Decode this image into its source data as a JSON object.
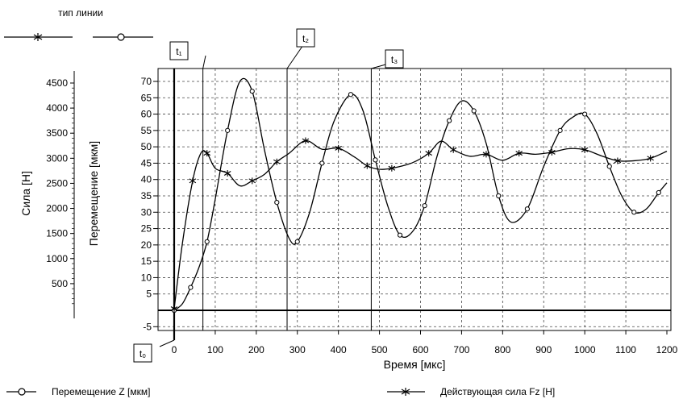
{
  "chart_data": {
    "type": "line",
    "legend_title": "тип линии",
    "xlabel": "Время [мкс]",
    "ylabel_left": "Сила [Н]",
    "ylabel_right": "Перемещение [мкм]",
    "xlim": [
      -50,
      1200
    ],
    "ylim_displacement": [
      -10,
      73
    ],
    "ylim_force": [
      -800,
      4700
    ],
    "grid": true,
    "x_ticks": [
      "0",
      "100",
      "200",
      "300",
      "400",
      "500",
      "600",
      "700",
      "800",
      "900",
      "1000",
      "1100",
      "1200"
    ],
    "y_ticks_displacement": [
      "-5",
      "5",
      "10",
      "15",
      "20",
      "25",
      "30",
      "35",
      "40",
      "45",
      "50",
      "55",
      "60",
      "65",
      "70"
    ],
    "y_ticks_force": [
      "500",
      "1000",
      "1500",
      "2000",
      "2500",
      "3000",
      "3500",
      "4000",
      "4500"
    ],
    "markers": [
      "t₀",
      "t₁",
      "t₂",
      "t₃"
    ],
    "marker_x": [
      0,
      70,
      275,
      480
    ],
    "series": [
      {
        "name": "Перемещение Z [мкм]",
        "marker": "circle",
        "x": [
          0,
          20,
          40,
          60,
          80,
          100,
          130,
          160,
          190,
          220,
          250,
          280,
          300,
          330,
          360,
          390,
          430,
          460,
          490,
          520,
          550,
          580,
          610,
          640,
          670,
          700,
          730,
          760,
          790,
          820,
          860,
          900,
          940,
          970,
          1000,
          1030,
          1060,
          1090,
          1120,
          1150,
          1180,
          1200
        ],
        "y": [
          0,
          2,
          7,
          13,
          21,
          34,
          55,
          70,
          67,
          49,
          33,
          22,
          21,
          30,
          45,
          58,
          66,
          61,
          46,
          32,
          23,
          24,
          32,
          47,
          58,
          64,
          61,
          51,
          35,
          27,
          31,
          44,
          55,
          59,
          60,
          54,
          44,
          35,
          30,
          31,
          36,
          39
        ]
      },
      {
        "name": "Действующая сила Fz [Н]",
        "marker": "star",
        "x": [
          0,
          20,
          45,
          65,
          80,
          100,
          130,
          160,
          190,
          220,
          250,
          280,
          320,
          360,
          400,
          440,
          470,
          500,
          530,
          580,
          620,
          650,
          680,
          720,
          760,
          800,
          840,
          880,
          920,
          960,
          1000,
          1040,
          1080,
          1120,
          1160,
          1200
        ],
        "y": [
          0,
          1300,
          2550,
          3100,
          3100,
          2800,
          2700,
          2450,
          2550,
          2680,
          2930,
          3100,
          3350,
          3180,
          3200,
          3020,
          2850,
          2780,
          2800,
          2910,
          3100,
          3340,
          3170,
          3040,
          3080,
          2960,
          3100,
          3080,
          3120,
          3190,
          3170,
          3050,
          2950,
          2950,
          3000,
          3140
        ]
      }
    ]
  }
}
